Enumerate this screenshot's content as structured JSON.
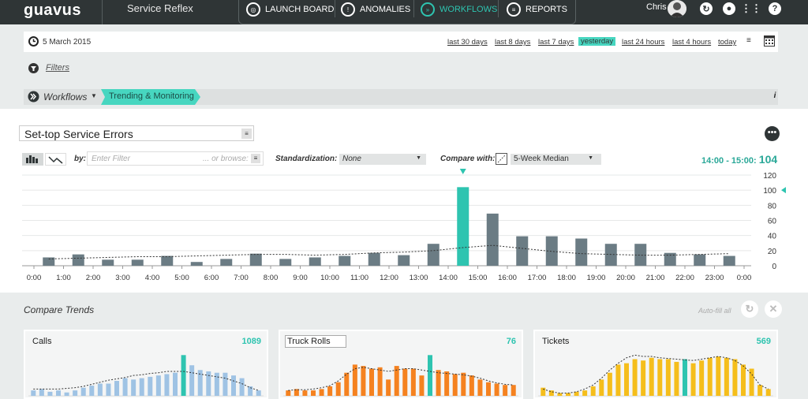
{
  "app": {
    "logo": "guavus",
    "title": "Service Reflex"
  },
  "nav": [
    {
      "label": "LAUNCH BOARD",
      "active": false
    },
    {
      "label": "ANOMALIES",
      "active": false
    },
    {
      "label": "WORKFLOWS",
      "active": true
    },
    {
      "label": "REPORTS",
      "active": false
    }
  ],
  "user": {
    "name": "Chris"
  },
  "datebar": {
    "date": "5 March 2015",
    "ranges": [
      "last 30 days",
      "last 8 days",
      "last 7 days",
      "yesterday",
      "last 24 hours",
      "last 4 hours",
      "today"
    ],
    "selected": "yesterday"
  },
  "filters": {
    "label": "Filters"
  },
  "breadcrumb": {
    "workflows": "Workflows",
    "current": "Trending & Monitoring"
  },
  "chart_header": {
    "title": "Set-top Service Errors",
    "by_label": "by:",
    "filter_placeholder": "Enter Filter",
    "browse_label": "... or browse:",
    "standardization_label": "Standardization:",
    "standardization_value": "None",
    "compare_label": "Compare with:",
    "compare_value": "5-Week Median",
    "peak_range": "14:00 - 15:00:",
    "peak_value": "104"
  },
  "colors": {
    "accent": "#2ec4b0",
    "bar": "#6b7c84",
    "calls": "#9fc3e4",
    "truck": "#f58220",
    "tickets": "#f5be1c"
  },
  "chart_data": [
    {
      "type": "bar",
      "title": "Set-top Service Errors",
      "categories": [
        "0:00",
        "1:00",
        "2:00",
        "3:00",
        "4:00",
        "5:00",
        "6:00",
        "7:00",
        "8:00",
        "9:00",
        "10:00",
        "11:00",
        "12:00",
        "13:00",
        "14:00",
        "15:00",
        "16:00",
        "17:00",
        "18:00",
        "19:00",
        "20:00",
        "21:00",
        "22:00",
        "23:00"
      ],
      "x_ticks": [
        "0:00",
        "1:00",
        "2:00",
        "3:00",
        "4:00",
        "5:00",
        "6:00",
        "7:00",
        "8:00",
        "9:00",
        "10:00",
        "11:00",
        "12:00",
        "13:00",
        "14:00",
        "15:00",
        "16:00",
        "17:00",
        "18:00",
        "19:00",
        "20:00",
        "21:00",
        "22:00",
        "23:00",
        "0:00"
      ],
      "series": [
        {
          "values": [
            11,
            15,
            8,
            8,
            13,
            5,
            9,
            16,
            9,
            11,
            13,
            17,
            14,
            29,
            104,
            69,
            39,
            39,
            36,
            29,
            29,
            17,
            15,
            13
          ]
        },
        {
          "type": "line",
          "style": "dashed",
          "values": [
            9,
            10,
            11,
            12,
            12,
            13,
            14,
            15,
            15,
            14,
            15,
            17,
            18,
            20,
            24,
            27,
            23,
            19,
            16,
            15,
            14,
            14,
            15,
            16
          ]
        }
      ],
      "highlight_index": 14,
      "ylim": [
        0,
        120
      ],
      "yticks": [
        0,
        20,
        40,
        60,
        80,
        100,
        120
      ],
      "marker_value": 100,
      "grid": true
    },
    {
      "type": "bar",
      "title": "Calls",
      "value_label": "1089",
      "values": [
        8,
        10,
        6,
        8,
        5,
        8,
        12,
        15,
        18,
        18,
        22,
        26,
        24,
        26,
        28,
        30,
        32,
        34,
        60,
        45,
        38,
        36,
        34,
        34,
        30,
        26,
        14,
        8
      ],
      "trend": [
        10,
        10,
        10,
        10,
        11,
        12,
        14,
        17,
        20,
        23,
        25,
        27,
        30,
        31,
        33,
        34,
        36,
        36,
        36,
        34,
        32,
        30,
        28,
        26,
        22,
        18,
        12,
        8
      ],
      "highlight_index": 18,
      "ylim": [
        0,
        65
      ]
    },
    {
      "type": "bar",
      "title": "Truck Rolls",
      "value_label": "76",
      "values": [
        8,
        10,
        8,
        8,
        10,
        14,
        20,
        34,
        46,
        44,
        40,
        42,
        24,
        44,
        40,
        40,
        30,
        60,
        38,
        36,
        32,
        34,
        30,
        24,
        20,
        18,
        16,
        16
      ],
      "trend": [
        8,
        9,
        9,
        10,
        12,
        15,
        22,
        32,
        40,
        42,
        40,
        38,
        36,
        38,
        40,
        40,
        38,
        36,
        34,
        33,
        32,
        31,
        29,
        26,
        22,
        19,
        17,
        16
      ],
      "highlight_index": 17,
      "ylim": [
        0,
        65
      ]
    },
    {
      "type": "bar",
      "title": "Tickets",
      "value_label": "569",
      "values": [
        12,
        8,
        4,
        4,
        6,
        8,
        14,
        24,
        34,
        46,
        48,
        54,
        52,
        56,
        54,
        54,
        50,
        54,
        48,
        52,
        56,
        58,
        56,
        54,
        46,
        40,
        16,
        10
      ],
      "trend": [
        10,
        6,
        4,
        4,
        6,
        10,
        16,
        26,
        38,
        48,
        56,
        60,
        58,
        58,
        56,
        55,
        54,
        53,
        52,
        54,
        56,
        58,
        56,
        52,
        44,
        32,
        16,
        10
      ],
      "highlight_index": 17,
      "ylim": [
        0,
        65
      ]
    }
  ],
  "compare": {
    "title": "Compare Trends",
    "autofill": "Auto-fill all"
  }
}
